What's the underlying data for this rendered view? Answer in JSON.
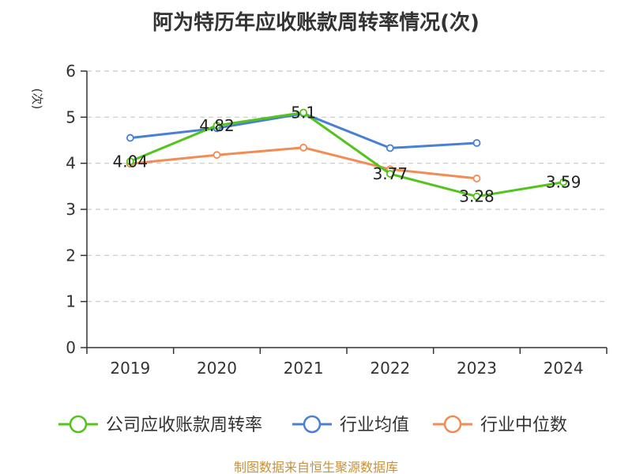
{
  "chart_data": {
    "type": "line",
    "title": "阿为特历年应收账款周转率情况(次)",
    "ylabel": "(次)",
    "xlabel": "",
    "categories": [
      "2019",
      "2020",
      "2021",
      "2022",
      "2023",
      "2024"
    ],
    "ylim": [
      0,
      6
    ],
    "yticks": [
      0,
      1,
      2,
      3,
      4,
      5,
      6
    ],
    "grid": true,
    "legend_position": "bottom",
    "series": [
      {
        "name": "公司应收账款周转率",
        "color": "#52c41a",
        "values": [
          4.04,
          4.82,
          5.1,
          3.77,
          3.28,
          3.59
        ],
        "show_labels": true
      },
      {
        "name": "行业均值",
        "color": "#4a7fd6",
        "values": [
          4.55,
          4.76,
          5.08,
          4.33,
          4.44,
          null
        ],
        "show_labels": false
      },
      {
        "name": "行业中位数",
        "color": "#f28b54",
        "values": [
          3.99,
          4.18,
          4.34,
          3.87,
          3.67,
          null
        ],
        "show_labels": false
      }
    ]
  },
  "source": {
    "text": "制图数据来自恒生聚源数据库",
    "color": "#c8913a"
  },
  "ylabel_color": "#e02020"
}
